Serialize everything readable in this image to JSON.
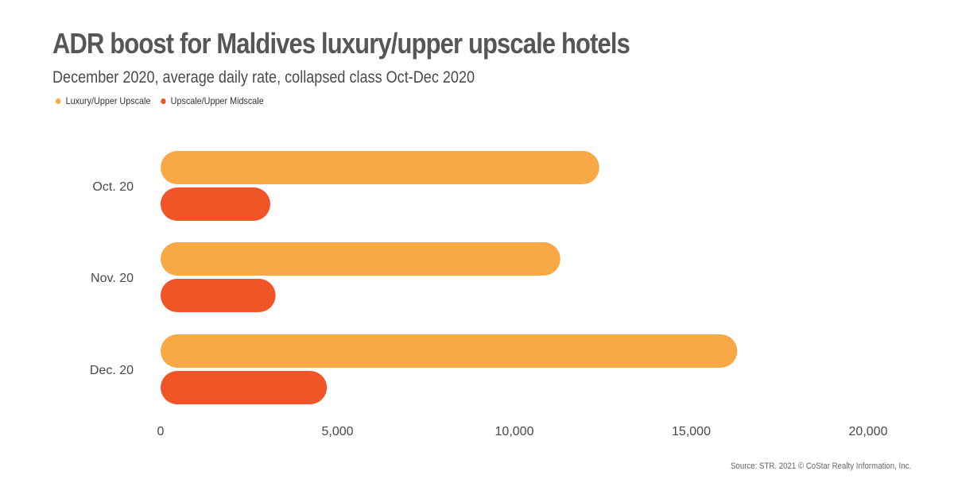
{
  "header": {
    "title": "ADR boost for Maldives luxury/upper upscale hotels",
    "subtitle": "December 2020, average daily rate, collapsed class Oct-Dec 2020"
  },
  "footer": {
    "source": "Source: STR. 2021 © CoStar Realty Information, Inc."
  },
  "chart_data": {
    "type": "bar",
    "orientation": "horizontal",
    "title": "ADR boost for Maldives luxury/upper upscale hotels",
    "subtitle": "December 2020, average daily rate, collapsed class Oct-Dec 2020",
    "categories": [
      "Oct. 20",
      "Nov. 20",
      "Dec. 20"
    ],
    "series": [
      {
        "name": "Luxury/Upper Upscale",
        "color": "#F9A846",
        "values": [
          12400,
          11300,
          16300
        ]
      },
      {
        "name": "Upscale/Upper Midscale",
        "color": "#F05427",
        "values": [
          3100,
          3250,
          4700
        ]
      }
    ],
    "xlim": [
      0,
      20000
    ],
    "xticks": [
      0,
      5000,
      10000,
      15000,
      20000
    ],
    "xtick_labels": [
      "0",
      "5,000",
      "10,000",
      "15,000",
      "20,000"
    ],
    "grid": false,
    "legend_position": "top-left"
  }
}
